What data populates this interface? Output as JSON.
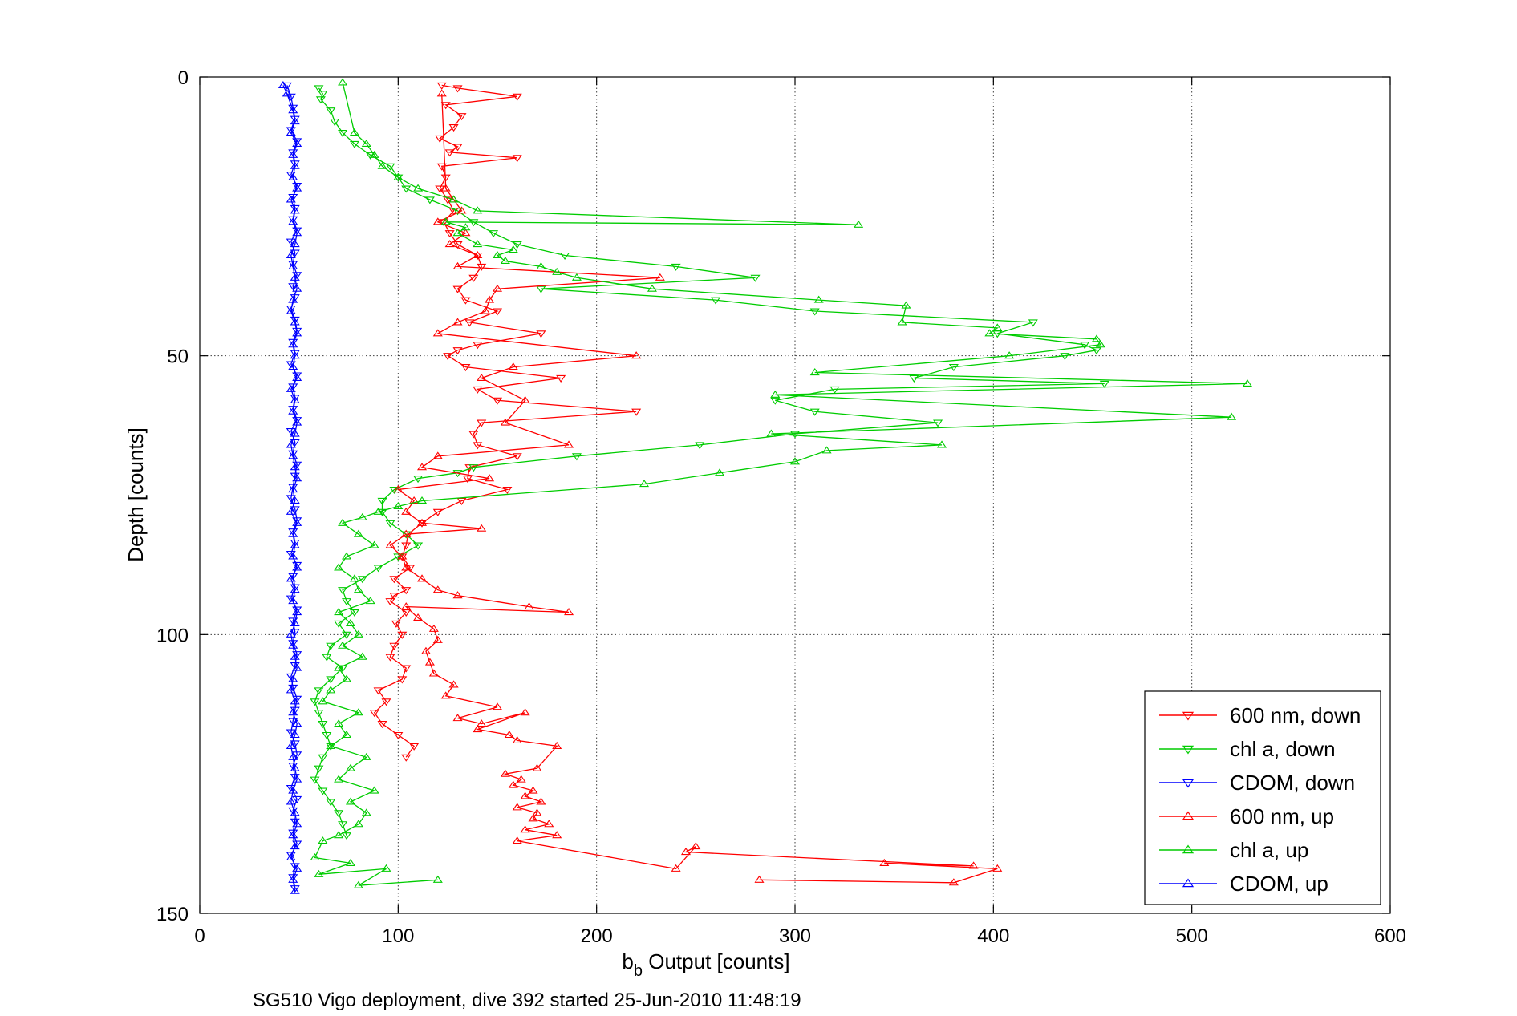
{
  "chart_data": {
    "type": "line",
    "xlabel": "b",
    "xlabel_sub": "b",
    "xlabel_rest": " Output [counts]",
    "ylabel": "Depth [counts]",
    "caption": "SG510 Vigo deployment, dive 392 started 25-Jun-2010 11:48:19",
    "xlim": [
      0,
      600
    ],
    "ylim": [
      0,
      150
    ],
    "y_reversed": true,
    "grid": true,
    "legend_position": "bottom-right",
    "x_ticks": [
      "0",
      "100",
      "200",
      "300",
      "400",
      "500",
      "600"
    ],
    "y_ticks": [
      "0",
      "50",
      "100",
      "150"
    ],
    "series": [
      {
        "name": "600 nm, down",
        "color": "#ff0000",
        "marker": "triangle-down",
        "x": [
          122,
          130,
          160,
          124,
          132,
          128,
          121,
          130,
          126,
          160,
          122,
          124,
          121,
          125,
          128,
          123,
          126,
          130,
          140,
          142,
          138,
          130,
          134,
          150,
          136,
          172,
          140,
          130,
          125,
          134,
          182,
          140,
          150,
          220,
          142,
          138,
          140,
          160,
          136,
          135,
          155,
          132,
          120,
          112,
          105,
          104,
          102,
          106,
          98,
          104,
          98,
          96,
          104,
          99,
          102,
          98,
          96,
          104,
          102,
          90,
          94,
          88,
          92,
          100,
          108,
          104
        ],
        "y": [
          1.5,
          2,
          3.5,
          5,
          7,
          9,
          11,
          12.5,
          13.5,
          14.5,
          16,
          18,
          20,
          22,
          24,
          26,
          28,
          30,
          32,
          34,
          36,
          38,
          40,
          42,
          44,
          46,
          48,
          49,
          50,
          52,
          54,
          56,
          58,
          60,
          62,
          64,
          66,
          68,
          70,
          72,
          74,
          76,
          78,
          80,
          82,
          84,
          86,
          88,
          90,
          92,
          93,
          94,
          96,
          98,
          100,
          102,
          104,
          106,
          108,
          110,
          112,
          114,
          116,
          118,
          120,
          122
        ]
      },
      {
        "name": "chl a, down",
        "color": "#00cc00",
        "marker": "triangle-down",
        "x": [
          60,
          62,
          61,
          66,
          68,
          72,
          78,
          86,
          96,
          100,
          104,
          116,
          130,
          138,
          148,
          160,
          184,
          240,
          280,
          172,
          260,
          310,
          420,
          402,
          446,
          452,
          436,
          380,
          360,
          456,
          320,
          290,
          310,
          372,
          300,
          252,
          190,
          138,
          130,
          110,
          98,
          92,
          92,
          96,
          104,
          110,
          100,
          90,
          82,
          72,
          74,
          78,
          70,
          74,
          66,
          64,
          72,
          66,
          60,
          58,
          60,
          62,
          64,
          66,
          62,
          60,
          58,
          62,
          66,
          70,
          72,
          74
        ],
        "y": [
          2,
          3,
          4,
          6,
          8,
          10,
          12,
          14,
          16,
          18,
          20,
          22,
          24,
          26,
          28,
          30,
          32,
          34,
          36,
          38,
          40,
          42,
          44,
          46,
          48,
          49,
          50,
          52,
          54,
          55,
          56,
          58,
          60,
          62,
          64,
          66,
          68,
          70,
          71,
          72,
          74,
          76,
          78,
          80,
          82,
          84,
          86,
          88,
          90,
          92,
          94,
          96,
          98,
          100,
          102,
          104,
          106,
          108,
          110,
          112,
          114,
          116,
          118,
          120,
          122,
          124,
          126,
          128,
          130,
          132,
          134,
          136
        ]
      },
      {
        "name": "CDOM, down",
        "color": "#0000ff",
        "marker": "triangle-down",
        "x": [
          44,
          46,
          47,
          48,
          46,
          49,
          47,
          48,
          46,
          49,
          47,
          48,
          47,
          49,
          46,
          48,
          47,
          49,
          47,
          48,
          46,
          48,
          49,
          47,
          48,
          46,
          49,
          47,
          48,
          47,
          49,
          46,
          48,
          47,
          49,
          48,
          47,
          46,
          48,
          49,
          47,
          48,
          46,
          49,
          47,
          48,
          46,
          49,
          47,
          48,
          47,
          49,
          48,
          46,
          47,
          49,
          48,
          47,
          46,
          48,
          49,
          47,
          48,
          46,
          49,
          47,
          48,
          47,
          49,
          46,
          48,
          47,
          48
        ],
        "y": [
          1.5,
          3.5,
          5.5,
          7.5,
          9.5,
          11.5,
          13.5,
          15.5,
          17.5,
          19.5,
          21.5,
          23.5,
          25.5,
          27.5,
          29.5,
          31.5,
          33.5,
          35.5,
          37.5,
          39.5,
          41.5,
          43.5,
          45.5,
          47.5,
          49.5,
          51.5,
          53.5,
          55.5,
          57.5,
          59.5,
          61.5,
          63.5,
          65.5,
          67.5,
          69.5,
          71.5,
          73.5,
          75.5,
          77.5,
          79.5,
          81.5,
          83.5,
          85.5,
          87.5,
          89.5,
          91.5,
          93.5,
          95.5,
          97.5,
          99.5,
          101.5,
          103.5,
          105.5,
          107.5,
          109.5,
          111.5,
          113.5,
          115.5,
          117.5,
          119.5,
          121.5,
          123.5,
          125.5,
          127.5,
          129.5,
          131.5,
          133.5,
          135.5,
          137.5,
          139.5,
          141.5,
          143.5,
          145.5
        ]
      },
      {
        "name": "600 nm, up",
        "color": "#ff0000",
        "marker": "triangle-up",
        "x": [
          282,
          380,
          402,
          345,
          390,
          245,
          250,
          240,
          160,
          180,
          164,
          176,
          168,
          170,
          160,
          172,
          164,
          168,
          158,
          162,
          154,
          170,
          180,
          160,
          156,
          140,
          164,
          142,
          130,
          150,
          124,
          128,
          118,
          116,
          114,
          120,
          118,
          110,
          104,
          186,
          166,
          130,
          120,
          112,
          104,
          102,
          96,
          104,
          142,
          112,
          104,
          108,
          100,
          146,
          112,
          120,
          186,
          154,
          164,
          142,
          158,
          220,
          120,
          130,
          144,
          146,
          150,
          232,
          130,
          140,
          126,
          134,
          120,
          132,
          128,
          124,
          122
        ],
        "y": [
          144,
          144.5,
          142,
          141,
          141.5,
          139,
          138,
          142,
          137,
          136,
          135,
          134,
          133,
          132,
          131,
          130,
          129,
          128,
          127,
          126,
          125,
          124,
          120,
          119,
          118,
          117,
          114,
          116,
          115,
          113,
          111,
          109,
          107,
          105,
          103,
          101,
          99,
          97,
          95,
          96,
          95,
          93,
          92,
          90,
          88,
          86,
          84,
          82,
          81,
          80,
          78,
          76,
          74,
          72,
          70,
          68,
          66,
          62,
          58,
          54,
          52,
          50,
          46,
          44,
          42,
          40,
          38,
          36,
          34,
          32,
          30,
          28,
          26,
          24,
          22,
          20,
          3
        ]
      },
      {
        "name": "chl a, up",
        "color": "#00cc00",
        "marker": "triangle-up",
        "x": [
          120,
          80,
          94,
          60,
          76,
          58,
          62,
          70,
          80,
          84,
          76,
          88,
          70,
          76,
          84,
          66,
          74,
          70,
          80,
          62,
          66,
          74,
          70,
          82,
          72,
          80,
          76,
          70,
          86,
          80,
          78,
          70,
          74,
          88,
          80,
          72,
          82,
          90,
          100,
          112,
          224,
          262,
          300,
          316,
          374,
          288,
          520,
          290,
          528,
          310,
          408,
          454,
          452,
          398,
          402,
          354,
          356,
          312,
          228,
          190,
          180,
          172,
          154,
          150,
          158,
          140,
          130,
          134,
          124,
          332,
          140,
          128,
          110,
          100,
          92,
          88,
          84,
          78,
          72
        ],
        "y": [
          144,
          145,
          142,
          143,
          141,
          140,
          137,
          136,
          134,
          132,
          130,
          128,
          126,
          124,
          122,
          120,
          118,
          116,
          114,
          112,
          110,
          108,
          106,
          104,
          102,
          100,
          98,
          96,
          94,
          92,
          90,
          88,
          86,
          84,
          82,
          80,
          79,
          78,
          77,
          76,
          73,
          71,
          69,
          67,
          66,
          64,
          61,
          57,
          55,
          53,
          50,
          48,
          47,
          46,
          45,
          44,
          41,
          40,
          38,
          36,
          35,
          34,
          33,
          32,
          31,
          30,
          28,
          27,
          26,
          26.5,
          24,
          22,
          20,
          18,
          16,
          14,
          12,
          10,
          1
        ]
      },
      {
        "name": "CDOM, up",
        "color": "#0000ff",
        "marker": "triangle-up",
        "x": [
          48,
          47,
          49,
          46,
          48,
          47,
          49,
          48,
          46,
          47,
          49,
          48,
          47,
          46,
          48,
          49,
          47,
          48,
          46,
          47,
          49,
          48,
          47,
          46,
          48,
          49,
          47,
          48,
          46,
          49,
          47,
          48,
          47,
          49,
          46,
          48,
          47,
          49,
          48,
          47,
          46,
          48,
          49,
          47,
          48,
          46,
          49,
          47,
          48,
          47,
          49,
          48,
          46,
          47,
          49,
          48,
          47,
          46,
          48,
          49,
          47,
          48,
          46,
          49,
          47,
          48,
          47,
          49,
          46,
          48,
          47,
          44,
          42
        ],
        "y": [
          146,
          144,
          142,
          140,
          138,
          136,
          134,
          132,
          130,
          128,
          126,
          124,
          122,
          120,
          118,
          116,
          114,
          112,
          110,
          108,
          106,
          104,
          102,
          100,
          98,
          96,
          94,
          92,
          90,
          88,
          86,
          84,
          82,
          80,
          78,
          76,
          74,
          72,
          70,
          68,
          66,
          64,
          62,
          60,
          58,
          56,
          54,
          52,
          50,
          48,
          46,
          44,
          42,
          40,
          38,
          36,
          34,
          32,
          30,
          28,
          26,
          24,
          22,
          20,
          18,
          16,
          14,
          12,
          10,
          8,
          6,
          3,
          1.5
        ]
      }
    ]
  }
}
